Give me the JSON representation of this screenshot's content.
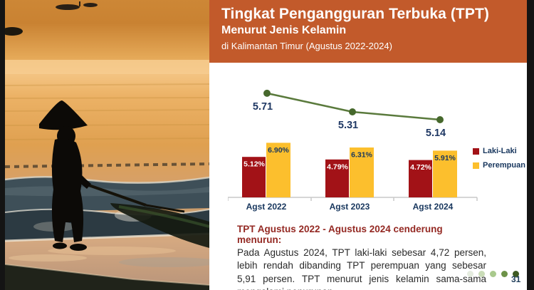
{
  "header": {
    "title": "Tingkat Pengangguran Terbuka (TPT)",
    "subtitle": "Menurut Jenis Kelamin",
    "location_line": "di Kalimantan Timur  (Agustus 2022-2024)",
    "background_color": "#c25a2b"
  },
  "chart_data": {
    "type": "bar",
    "categories": [
      "Agst 2022",
      "Agst 2023",
      "Agst 2024"
    ],
    "series": [
      {
        "name": "Laki-Laki",
        "values": [
          5.12,
          4.79,
          4.72
        ],
        "labels": [
          "5.12%",
          "4.79%",
          "4.72%"
        ],
        "color": "#a21217"
      },
      {
        "name": "Perempuan",
        "values": [
          6.9,
          6.31,
          5.91
        ],
        "labels": [
          "6.90%",
          "6.31%",
          "5.91%"
        ],
        "color": "#fcbf2d"
      }
    ],
    "line": {
      "values": [
        5.71,
        5.31,
        5.14
      ],
      "labels": [
        "5.71",
        "5.31",
        "5.14"
      ],
      "color": "#5a7a3c",
      "point_color": "#46682c",
      "label_color": "#1f3864"
    },
    "value_label_colors": {
      "bar_0": "#ffffff",
      "bar_1": "#17365d"
    },
    "category_label_color": "#17365d",
    "axis_color": "#c9c9c9",
    "legend_position": "right",
    "grid": false,
    "ylim_hint": [
      0,
      7
    ]
  },
  "summary": {
    "heading": "TPT Agustus 2022 - Agustus 2024 cenderung menurun:",
    "body": "Pada Agustus 2024, TPT laki-laki sebesar 4,72 persen, lebih rendah dibanding TPT perempuan yang sebesar 5,91 persen. TPT menurut jenis kelamin sama-sama mengalami penurunan."
  },
  "pagination_dots": [
    "#e5ecdf",
    "#cadcb8",
    "#a9c98d",
    "#6d9248",
    "#3e5a22"
  ],
  "page": {
    "number": "31"
  }
}
